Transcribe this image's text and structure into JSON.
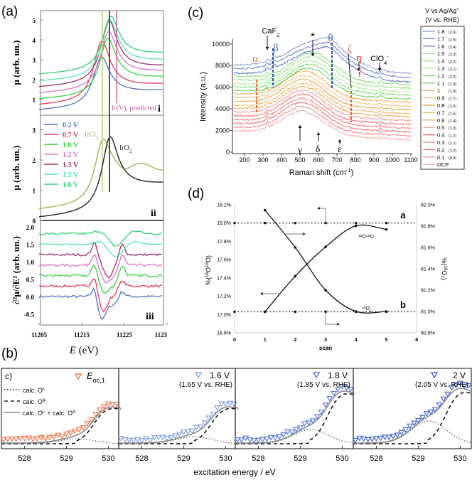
{
  "chart_data": [
    {
      "panel": "(a)",
      "type": "line",
      "xlabel": "E (eV)",
      "xlabel_italic": "E",
      "xlabel_unit": "(eV)",
      "xlim": [
        11205,
        11234
      ],
      "xticks": [
        "11205",
        "11215",
        "11225",
        "1123"
      ],
      "legend": [
        {
          "name": "0.2 V",
          "color": "#4f6fc0"
        },
        {
          "name": "0.7 V",
          "color": "#e8365e"
        },
        {
          "name": "1.0 V",
          "color": "#34d23a"
        },
        {
          "name": "1.2 V",
          "color": "#e070c8"
        },
        {
          "name": "1.3 V",
          "color": "#a0306a"
        },
        {
          "name": "1.5 V",
          "color": "#50e8b0"
        },
        {
          "name": "1.6 V",
          "color": "#30d070"
        }
      ],
      "subpanels": [
        {
          "id": "i",
          "ylabel": "μ (arb. un.)",
          "ylim": [
            0.2,
            5.45
          ],
          "yticks": [
            1,
            2,
            3,
            4,
            5
          ],
          "series": [
            {
              "name": "0.2 V",
              "base": 0.45,
              "peak_E": 11219.5,
              "peak_mu": 3.2,
              "tail": 1.1
            },
            {
              "name": "0.7 V",
              "base": 0.7,
              "peak_E": 11219.6,
              "peak_mu": 4.0,
              "tail": 1.4
            },
            {
              "name": "1.0 V",
              "base": 1.0,
              "peak_E": 11221.0,
              "peak_mu": 4.1,
              "tail": 1.75
            },
            {
              "name": "1.2 V",
              "base": 1.3,
              "peak_E": 11221.2,
              "peak_mu": 4.45,
              "tail": 2.05
            },
            {
              "name": "1.3 V",
              "base": 1.6,
              "peak_E": 11221.3,
              "peak_mu": 5.0,
              "tail": 2.3
            },
            {
              "name": "1.5 V",
              "base": 1.9,
              "peak_E": 11221.5,
              "peak_mu": 5.0,
              "tail": 2.6
            },
            {
              "name": "1.6 V",
              "base": 2.25,
              "peak_E": 11221.7,
              "peak_mu": 5.2,
              "tail": 2.95
            }
          ],
          "annotation": "Ir(V), predicted",
          "annotation_color": "#c0609a",
          "marker_E": 11223.2
        },
        {
          "id": "ii",
          "ylabel": "μ (arb. un.)",
          "ylim": [
            0,
            3.48
          ],
          "yticks": [
            0,
            1,
            2,
            3
          ],
          "references": [
            {
              "name": "IrCl",
              "sub": "3",
              "color": "#a8b860",
              "base": 0.35,
              "peak_E": 11219.8,
              "peak_mu": 2.75,
              "tail": 1.25,
              "marker_E": 11219.8
            },
            {
              "name": "IrO",
              "sub": "2",
              "color": "#303030",
              "base": 0.08,
              "peak_E": 11221.5,
              "peak_mu": 2.8,
              "tail": 0.85,
              "marker_E": 11221.5
            }
          ]
        },
        {
          "id": "iii",
          "ylabel": "∂²μ/∂E² (arb. un.)",
          "ylim": [
            -0.8,
            2.2
          ],
          "yticks": [
            "2.0",
            "1.5",
            "1.0",
            "0.5",
            "0.0",
            "-0.5"
          ],
          "series": [
            {
              "name": "0.2 V",
              "baseline": 0.0,
              "min": -0.65
            },
            {
              "name": "0.7 V",
              "baseline": 0.3,
              "min": -0.42
            },
            {
              "name": "1.0 V",
              "baseline": 0.6,
              "min": 0.1
            },
            {
              "name": "1.2 V",
              "baseline": 0.9,
              "min": 0.4
            },
            {
              "name": "1.3 V",
              "baseline": 1.2,
              "min": 0.6
            },
            {
              "name": "1.5 V",
              "baseline": 1.5,
              "min": 1.15
            },
            {
              "name": "1.6 V",
              "baseline": 1.8,
              "min": 1.45
            }
          ]
        }
      ]
    },
    {
      "panel": "(b)",
      "type": "scatter",
      "xlabel": "excitation energy / eV",
      "xlim": [
        527.45,
        530.3
      ],
      "xticks": [
        "528",
        "529",
        "530"
      ],
      "inner_label": "c)",
      "legend": [
        {
          "name": "calc. O",
          "sup": "I-",
          "style": "dotted"
        },
        {
          "name": "calc. O",
          "sup": "II-",
          "style": "dashed"
        },
        {
          "name": "calc. O",
          "sup": "I-",
          "plus": " + calc. O",
          "sup2": "II-",
          "style": "solid"
        }
      ],
      "panels": [
        {
          "label": "E",
          "label_sub": "oc,1",
          "rhe": "",
          "color": "#f07850",
          "O_I": 0.07,
          "O_II": 0.55
        },
        {
          "label": "1.6 V",
          "rhe": "(1.65 V vs. RHE)",
          "color": "#8aa4e0",
          "O_I": 0.1,
          "O_II": 0.55
        },
        {
          "label": "1.8 V",
          "rhe": "(1.85 V vs. RHE)",
          "color": "#5f7fd8",
          "O_I": 0.2,
          "O_II": 0.78
        },
        {
          "label": "2 V",
          "rhe": "(2.05 V vs. RHE)",
          "color": "#4a6ad0",
          "O_I": 0.32,
          "O_II": 0.8
        }
      ]
    },
    {
      "panel": "(c)",
      "type": "line",
      "xlabel": "Raman shift (cm",
      "xlabel_sup": "-1",
      "xlabel_end": ")",
      "ylabel": "Intensity (a.u.)",
      "xlim": [
        137,
        1100
      ],
      "ylim": [
        -200,
        11000
      ],
      "xticks": [
        200,
        300,
        400,
        500,
        600,
        700,
        800,
        900,
        1000,
        1100
      ],
      "yticks": [
        0,
        2000,
        4000,
        6000,
        8000,
        10000
      ],
      "legend_title": "V vs Ag/Ag",
      "legend_title_sup": "+",
      "legend_subtitle": "(V vs. RHE)",
      "series": [
        {
          "v": "1.8",
          "rhe": "(2.6)",
          "color": "#7d92d0",
          "offset": 7250,
          "hump": 600,
          "height": 2600
        },
        {
          "v": "1.7",
          "rhe": "(2.5)",
          "color": "#5e7cc8",
          "offset": 6900,
          "hump": 600,
          "height": 2500
        },
        {
          "v": "1.6",
          "rhe": "(2.4)",
          "color": "#4a68c0",
          "offset": 6450,
          "hump": 600,
          "height": 2550
        },
        {
          "v": "1.5",
          "rhe": "(2.3)",
          "color": "#7edc6c",
          "offset": 6250,
          "hump": 570,
          "height": 2500
        },
        {
          "v": "1.4",
          "rhe": "(2.2)",
          "color": "#8ee27a",
          "offset": 5900,
          "hump": 565,
          "height": 2500
        },
        {
          "v": "1.3",
          "rhe": "(2.1)",
          "color": "#a6ea90",
          "offset": 5550,
          "hump": 560,
          "height": 2450
        },
        {
          "v": "1.2",
          "rhe": "(2.0)",
          "color": "#70d860",
          "offset": 5250,
          "hump": 555,
          "height": 2400
        },
        {
          "v": "1.1",
          "rhe": "(1.9)",
          "color": "#5ccc4c",
          "offset": 4900,
          "hump": 550,
          "height": 2400
        },
        {
          "v": "1",
          "rhe": "(1.8)",
          "color": "#eea040",
          "offset": 4600,
          "hump": 530,
          "height": 2400
        },
        {
          "v": "0.9",
          "rhe": "(1.7)",
          "color": "#f2b870",
          "offset": 4250,
          "hump": 525,
          "height": 2350
        },
        {
          "v": "0.8",
          "rhe": "(1.6)",
          "color": "#e89a3c",
          "offset": 3900,
          "hump": 522,
          "height": 2350
        },
        {
          "v": "0.7",
          "rhe": "(1.5)",
          "color": "#f0b060",
          "offset": 3550,
          "hump": 520,
          "height": 2300
        },
        {
          "v": "0.6",
          "rhe": "(1.4)",
          "color": "#e8a048",
          "offset": 3250,
          "hump": 520,
          "height": 2300
        },
        {
          "v": "0.5",
          "rhe": "(1.3)",
          "color": "#f49090",
          "offset": 2900,
          "hump": 518,
          "height": 2300
        },
        {
          "v": "0.4",
          "rhe": "(1.2)",
          "color": "#ee5a5a",
          "offset": 2550,
          "hump": 516,
          "height": 2300
        },
        {
          "v": "0.3",
          "rhe": "(1.1)",
          "color": "#f07070",
          "offset": 2200,
          "hump": 515,
          "height": 2250
        },
        {
          "v": "0.2",
          "rhe": "(1.0)",
          "color": "#ec6464",
          "offset": 1850,
          "hump": 515,
          "height": 2250
        },
        {
          "v": "0.1",
          "rhe": "(0.9)",
          "color": "#f27878",
          "offset": 1500,
          "hump": 514,
          "height": 2200
        },
        {
          "v": "OCP",
          "rhe": "",
          "color": "#f49c9c",
          "offset": 1150,
          "hump": 512,
          "height": 2150
        }
      ],
      "annotations": {
        "caf2": "CaF",
        "caf2_sub": "2",
        "alpha": "α",
        "beta": "β",
        "star": "*",
        "theta": "θ",
        "zeta": "ζ",
        "eta": "η",
        "clo4": "ClO",
        "clo4_sub": "4",
        "clo4_sup": "-",
        "gamma": "γ",
        "delta": "δ",
        "epsilon": "ε"
      }
    },
    {
      "panel": "(d)",
      "type": "line",
      "xlabel": "scan",
      "xlim": [
        0,
        6
      ],
      "xticks": [
        "0",
        "1",
        "2",
        "3",
        "4",
        "5",
        "6"
      ],
      "ylabel_left": "%(",
      "ylabel_left_sup1": "18",
      "ylabel_left_mid": "O",
      "ylabel_left_sup2": "16",
      "ylabel_left_end": "O)",
      "ylabel_right": "%(",
      "ylabel_right_sup": "16",
      "ylabel_right_end": "O₂)",
      "ylim_left": [
        16.8,
        18.2
      ],
      "ylim_right": [
        80.8,
        82.0
      ],
      "yticks_left": [
        "18.2%",
        "18.0%",
        "17.8%",
        "17.6%",
        "17.4%",
        "17.2%",
        "17.0%",
        "16.8%"
      ],
      "yticks_right": [
        "82.0%",
        "81.8%",
        "81.6%",
        "81.4%",
        "81.2%",
        "81.0%",
        "80.8%"
      ],
      "reference_lines": [
        {
          "label": "a",
          "value_left": 18.0
        },
        {
          "label": "b",
          "value_left": 17.03
        }
      ],
      "series": [
        {
          "name": "18O16O",
          "sup1": "18",
          "mid": "O",
          "sup2": "16",
          "end": "O",
          "axis": "left",
          "x": [
            1,
            2,
            3,
            4,
            5
          ],
          "y": [
            17.03,
            17.42,
            17.74,
            17.97,
            17.93
          ]
        },
        {
          "name": "16O2",
          "sup1": "16",
          "mid": "O",
          "sub": "2",
          "axis": "right",
          "x": [
            1,
            2,
            3,
            4,
            5
          ],
          "y": [
            81.95,
            81.6,
            81.2,
            81.0,
            81.0
          ]
        }
      ]
    }
  ]
}
